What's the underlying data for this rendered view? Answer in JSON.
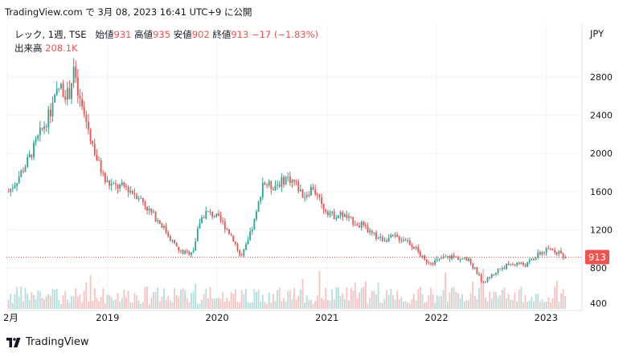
{
  "header": {
    "attribution": "TradingView.com で 3月 08, 2023 16:41 UTC+9 に公開"
  },
  "legend": {
    "symbol": "レック, 1週, TSE",
    "open_label": "始値",
    "open": "931",
    "high_label": "高値",
    "high": "935",
    "low_label": "安値",
    "low": "902",
    "close_label": "終値",
    "close": "913",
    "change": "−17 (−1.83%)",
    "volume_label": "出来高",
    "volume": "208.1K"
  },
  "axis": {
    "currency": "JPY",
    "last_price_label": "913"
  },
  "footer": {
    "brand": "TradingView"
  },
  "colors": {
    "up": "#26a69a",
    "down": "#ef5350",
    "grid": "#f0f3fa",
    "text": "#131722"
  },
  "chart_data": {
    "type": "candlestick",
    "interval": "1 week",
    "y_ticks": [
      800,
      1200,
      1600,
      2000,
      2400,
      2800
    ],
    "extra_y_tick": 400,
    "ylim": [
      380,
      3100
    ],
    "x_ticks": [
      {
        "label": "2月",
        "date": "2018-02-01"
      },
      {
        "label": "2019",
        "date": "2019-01-01"
      },
      {
        "label": "2020",
        "date": "2020-01-01"
      },
      {
        "label": "2021",
        "date": "2021-01-01"
      },
      {
        "label": "2022",
        "date": "2022-01-01"
      },
      {
        "label": "2023",
        "date": "2023-01-01"
      }
    ],
    "x_range": [
      "2018-01-29",
      "2023-04-20"
    ],
    "last_close": 913,
    "grid": true,
    "close_path": [
      [
        "2018-02-05",
        1600
      ],
      [
        "2018-03-01",
        1700
      ],
      [
        "2018-04-15",
        1950
      ],
      [
        "2018-05-20",
        2200
      ],
      [
        "2018-06-20",
        2400
      ],
      [
        "2018-07-25",
        2700
      ],
      [
        "2018-08-25",
        2600
      ],
      [
        "2018-09-10",
        2900
      ],
      [
        "2018-09-20",
        2650
      ],
      [
        "2018-10-25",
        2300
      ],
      [
        "2018-11-25",
        1950
      ],
      [
        "2018-12-25",
        1700
      ],
      [
        "2019-01-25",
        1650
      ],
      [
        "2019-03-01",
        1650
      ],
      [
        "2019-04-15",
        1550
      ],
      [
        "2019-05-20",
        1400
      ],
      [
        "2019-07-01",
        1250
      ],
      [
        "2019-08-01",
        1100
      ],
      [
        "2019-08-25",
        980
      ],
      [
        "2019-09-25",
        950
      ],
      [
        "2019-10-15",
        1000
      ],
      [
        "2019-11-05",
        1300
      ],
      [
        "2019-11-25",
        1380
      ],
      [
        "2019-12-25",
        1350
      ],
      [
        "2020-01-25",
        1250
      ],
      [
        "2020-02-25",
        1100
      ],
      [
        "2020-03-20",
        900
      ],
      [
        "2020-04-10",
        1050
      ],
      [
        "2020-05-10",
        1350
      ],
      [
        "2020-06-01",
        1700
      ],
      [
        "2020-07-01",
        1650
      ],
      [
        "2020-08-01",
        1700
      ],
      [
        "2020-08-20",
        1750
      ],
      [
        "2020-09-15",
        1700
      ],
      [
        "2020-10-15",
        1550
      ],
      [
        "2020-11-15",
        1650
      ],
      [
        "2020-12-15",
        1450
      ],
      [
        "2021-01-20",
        1350
      ],
      [
        "2021-02-20",
        1360
      ],
      [
        "2021-03-20",
        1300
      ],
      [
        "2021-04-25",
        1250
      ],
      [
        "2021-06-01",
        1150
      ],
      [
        "2021-07-01",
        1100
      ],
      [
        "2021-08-15",
        1120
      ],
      [
        "2021-09-20",
        1100
      ],
      [
        "2021-10-20",
        1020
      ],
      [
        "2021-11-20",
        880
      ],
      [
        "2021-12-20",
        860
      ],
      [
        "2022-01-20",
        900
      ],
      [
        "2022-02-20",
        920
      ],
      [
        "2022-03-20",
        900
      ],
      [
        "2022-04-20",
        870
      ],
      [
        "2022-05-10",
        780
      ],
      [
        "2022-06-05",
        650
      ],
      [
        "2022-06-25",
        700
      ],
      [
        "2022-07-25",
        780
      ],
      [
        "2022-08-25",
        830
      ],
      [
        "2022-09-25",
        850
      ],
      [
        "2022-10-25",
        830
      ],
      [
        "2022-11-20",
        900
      ],
      [
        "2022-12-15",
        960
      ],
      [
        "2023-01-20",
        1000
      ],
      [
        "2023-02-15",
        960
      ],
      [
        "2023-03-06",
        913
      ]
    ]
  }
}
